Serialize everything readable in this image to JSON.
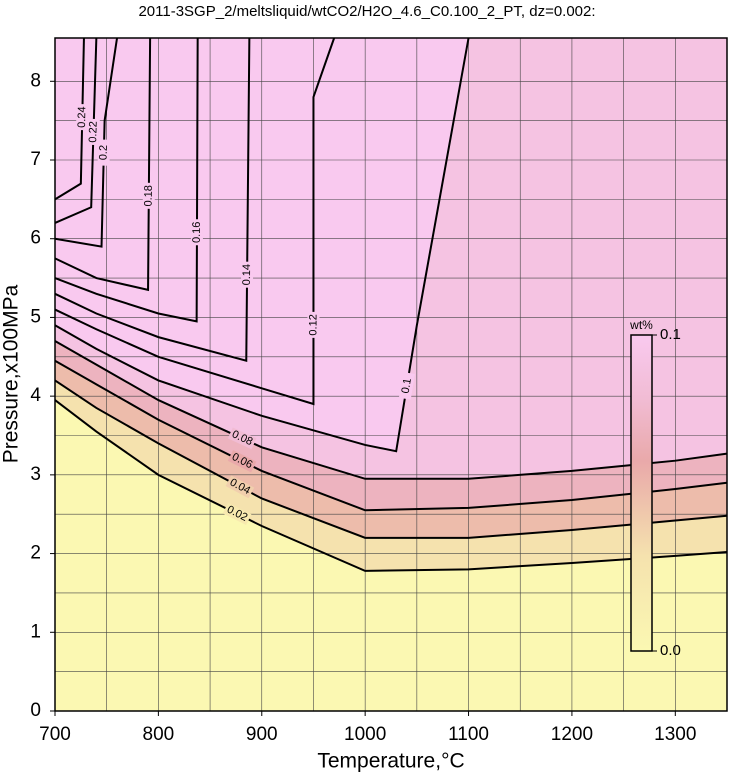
{
  "chart_data": {
    "type": "contour",
    "title": "2011-3SGP_2/meltsliquid/wtCO2/H2O_4.6_C0.100_2_PT, dz=0.002:",
    "x_label": "Temperature,°C",
    "y_label": "Pressure,x100MPa",
    "xlim": [
      700,
      1350
    ],
    "ylim": [
      0,
      8.55
    ],
    "xticks": [
      700,
      800,
      900,
      1000,
      1100,
      1200,
      1300
    ],
    "yticks": [
      0,
      1,
      2,
      3,
      4,
      5,
      6,
      7,
      8
    ],
    "xgrid": [
      750,
      800,
      850,
      900,
      950,
      1000,
      1050,
      1100,
      1150,
      1200,
      1250,
      1300
    ],
    "ygrid": [
      0.5,
      1,
      1.5,
      2,
      2.5,
      3,
      3.5,
      4,
      4.5,
      5,
      5.5,
      6,
      6.5,
      7,
      7.5,
      8
    ],
    "line_color": "#000000",
    "colorbar": {
      "title": "wt%",
      "range": [
        0,
        0.1
      ],
      "ticks": [
        {
          "value": 0,
          "label": "0.0"
        },
        {
          "value": 0.1,
          "label": "0.1"
        }
      ]
    },
    "colormap": [
      {
        "value": 0,
        "color": "#fbf8b2"
      },
      {
        "value": 0.03,
        "color": "#f5e2ae"
      },
      {
        "value": 0.06,
        "color": "#e9a9aa"
      },
      {
        "value": 0.08,
        "color": "#f1bcd4"
      },
      {
        "value": 0.1,
        "color": "#f9c9ef"
      }
    ],
    "contours": [
      {
        "level": 0.02,
        "x": [
          700,
          740,
          800,
          900,
          1000,
          1100,
          1200,
          1300,
          1350
        ],
        "y": [
          3.95,
          3.55,
          3.0,
          2.35,
          1.78,
          1.8,
          1.88,
          1.97,
          2.02
        ]
      },
      {
        "level": 0.04,
        "x": [
          700,
          740,
          800,
          900,
          1000,
          1100,
          1200,
          1300,
          1350
        ],
        "y": [
          4.2,
          3.85,
          3.4,
          2.7,
          2.2,
          2.2,
          2.3,
          2.42,
          2.48
        ]
      },
      {
        "level": 0.06,
        "x": [
          700,
          740,
          800,
          900,
          1000,
          1100,
          1200,
          1300,
          1350
        ],
        "y": [
          4.45,
          4.15,
          3.7,
          3.05,
          2.55,
          2.58,
          2.68,
          2.82,
          2.9
        ]
      },
      {
        "level": 0.08,
        "x": [
          700,
          740,
          800,
          900,
          1000,
          1100,
          1200,
          1300,
          1350
        ],
        "y": [
          4.7,
          4.4,
          3.95,
          3.35,
          2.95,
          2.95,
          3.05,
          3.18,
          3.27
        ]
      },
      {
        "level": 0.1,
        "x": [
          700,
          740,
          800,
          900,
          1000,
          1030,
          1050,
          1100
        ],
        "y": [
          4.9,
          4.6,
          4.2,
          3.75,
          3.38,
          3.3,
          4.9,
          8.55
        ]
      },
      {
        "level": 0.12,
        "x": [
          700,
          740,
          800,
          900,
          950,
          950,
          970
        ],
        "y": [
          5.1,
          4.85,
          4.5,
          4.1,
          3.9,
          7.8,
          8.55
        ]
      },
      {
        "level": 0.14,
        "x": [
          700,
          740,
          800,
          885,
          888
        ],
        "y": [
          5.3,
          5.05,
          4.75,
          4.45,
          8.55
        ]
      },
      {
        "level": 0.16,
        "x": [
          700,
          740,
          800,
          837,
          838
        ],
        "y": [
          5.5,
          5.3,
          5.05,
          4.95,
          8.55
        ]
      },
      {
        "level": 0.18,
        "x": [
          700,
          740,
          790,
          792
        ],
        "y": [
          5.75,
          5.5,
          5.35,
          8.55
        ]
      },
      {
        "level": 0.2,
        "x": [
          700,
          745,
          748,
          760
        ],
        "y": [
          6.0,
          5.9,
          7.5,
          8.55
        ]
      },
      {
        "level": 0.22,
        "x": [
          700,
          735,
          740
        ],
        "y": [
          6.2,
          6.4,
          8.55
        ]
      },
      {
        "level": 0.24,
        "x": [
          700,
          725,
          728
        ],
        "y": [
          6.5,
          6.7,
          8.55
        ]
      }
    ]
  }
}
